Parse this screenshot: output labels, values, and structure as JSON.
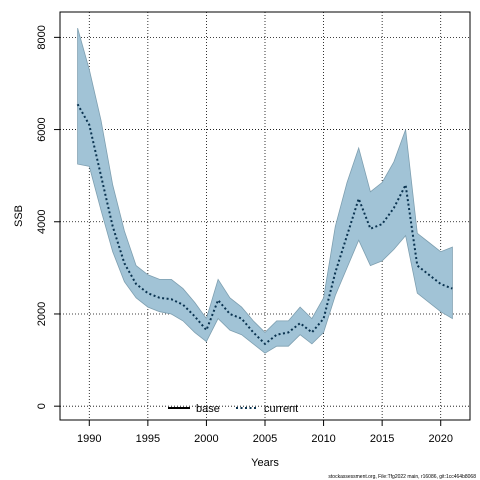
{
  "chart_data": {
    "type": "line",
    "title": "",
    "xlabel": "Years",
    "ylabel": "SSB",
    "xlim": [
      1987.5,
      2022.5
    ],
    "ylim": [
      -300,
      8550
    ],
    "x_ticks": [
      1990,
      1995,
      2000,
      2005,
      2010,
      2015,
      2020
    ],
    "y_ticks": [
      0,
      2000,
      4000,
      6000,
      8000
    ],
    "grid": true,
    "legend": {
      "placement": "bottom-center",
      "entries": [
        "base",
        "current"
      ]
    },
    "x": [
      1989,
      1990,
      1991,
      1992,
      1993,
      1994,
      1995,
      1996,
      1997,
      1998,
      1999,
      2000,
      2001,
      2002,
      2003,
      2004,
      2005,
      2006,
      2007,
      2008,
      2009,
      2010,
      2011,
      2012,
      2013,
      2014,
      2015,
      2016,
      2017,
      2018,
      2019,
      2020,
      2021
    ],
    "series": [
      {
        "name": "base",
        "values": [
          6550,
          6100,
          5000,
          3900,
          3100,
          2650,
          2450,
          2350,
          2320,
          2200,
          1950,
          1650,
          2300,
          2000,
          1900,
          1600,
          1350,
          1550,
          1600,
          1800,
          1600,
          1900,
          2900,
          3700,
          4500,
          3850,
          3950,
          4300,
          4800,
          3050,
          2850,
          2650,
          2550
        ]
      },
      {
        "name": "current",
        "values": [
          6550,
          6100,
          5000,
          3900,
          3100,
          2650,
          2450,
          2350,
          2320,
          2200,
          1950,
          1650,
          2300,
          2000,
          1900,
          1600,
          1350,
          1550,
          1600,
          1800,
          1600,
          1900,
          2900,
          3700,
          4500,
          3850,
          3950,
          4300,
          4800,
          3050,
          2850,
          2650,
          2550
        ]
      }
    ],
    "band": {
      "upper": [
        8200,
        7300,
        6200,
        4800,
        3800,
        3050,
        2850,
        2750,
        2750,
        2550,
        2250,
        1900,
        2750,
        2350,
        2150,
        1850,
        1600,
        1850,
        1850,
        2150,
        1900,
        2350,
        3900,
        4850,
        5600,
        4650,
        4850,
        5300,
        6000,
        3750,
        3550,
        3350,
        3450
      ],
      "lower": [
        5250,
        5200,
        4250,
        3350,
        2700,
        2350,
        2150,
        2050,
        2000,
        1850,
        1600,
        1400,
        1900,
        1650,
        1550,
        1350,
        1150,
        1300,
        1300,
        1550,
        1350,
        1600,
        2400,
        3000,
        3600,
        3050,
        3150,
        3400,
        3700,
        2450,
        2250,
        2050,
        1900
      ]
    },
    "colors": {
      "band_fill": "#a1c3d6",
      "band_edge": "#7e9fb0",
      "current_line": "#0a3350",
      "base_line": "#000000"
    }
  },
  "footnote": "stockassessment.org, File:Tfg2022 main, r16086, git:1cc464b8068"
}
